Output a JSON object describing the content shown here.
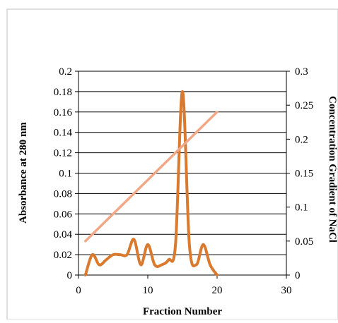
{
  "chart_data": {
    "type": "line",
    "xlabel": "Fraction Number",
    "ylabel": "Absorbance at 280 nm",
    "y2label": "Concentration Gradient of NaCl",
    "xlim": [
      0,
      30
    ],
    "ylim": [
      0,
      0.2
    ],
    "y2lim": [
      0,
      0.3
    ],
    "x_ticks": [
      "0",
      "10",
      "20",
      "30"
    ],
    "y_ticks": [
      "0",
      "0.02",
      "0.04",
      "0.06",
      "0.08",
      "0.1",
      "0.12",
      "0.14",
      "0.16",
      "0.18",
      "0.2"
    ],
    "y2_ticks": [
      "0",
      "0.05",
      "0.1",
      "0.15",
      "0.2",
      "0.25",
      "0.3"
    ],
    "grid": true,
    "series": [
      {
        "axis": "left",
        "color": "#D97A2E",
        "x": [
          1,
          2,
          3,
          4,
          5,
          6,
          7,
          8,
          9,
          10,
          11,
          12,
          13,
          14,
          15,
          16,
          17,
          18,
          19,
          20
        ],
        "values": [
          0,
          0.02,
          0.01,
          0.015,
          0.02,
          0.02,
          0.02,
          0.035,
          0.01,
          0.03,
          0.01,
          0.01,
          0.015,
          0.03,
          0.18,
          0.03,
          0.01,
          0.03,
          0.01,
          0
        ]
      },
      {
        "axis": "right",
        "color": "#F2A886",
        "x": [
          1,
          20
        ],
        "values": [
          0.05,
          0.24
        ]
      }
    ]
  }
}
